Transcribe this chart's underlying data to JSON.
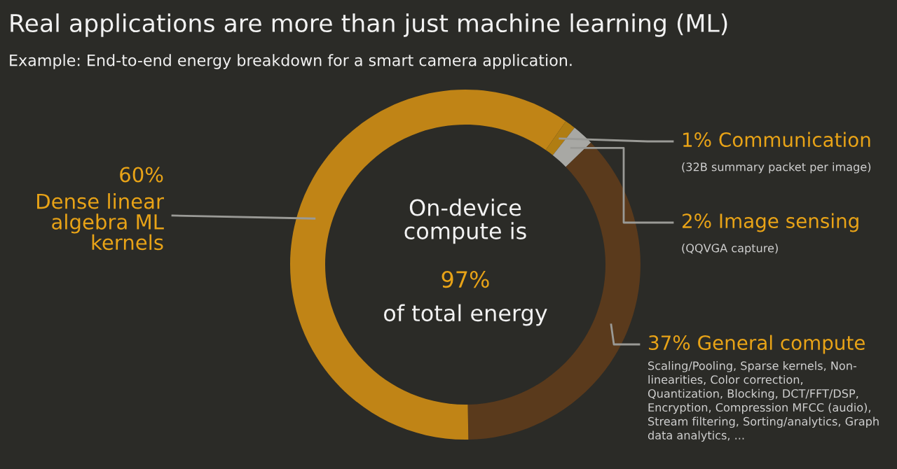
{
  "chart_data": {
    "type": "donut",
    "title": "Real applications are more than just machine learning (ML)",
    "subtitle": "Example: End-to-end energy breakdown for a smart camera application.",
    "categories": [
      "Communication",
      "Image sensing",
      "General compute",
      "Dense linear algebra ML kernels"
    ],
    "values": [
      1,
      2,
      37,
      60
    ],
    "value_labels": [
      "1%",
      "2%",
      "37%",
      "60%"
    ],
    "colors": [
      "#b07d12",
      "#a8a8a4",
      "#5a3a1c",
      "#c08416"
    ],
    "annotations": [
      "(32B summary packet per image)",
      "(QQVGA capture)",
      "Scaling/Pooling, Sparse kernels, Non-\nlinearities, Color correction,\nQuantization, Blocking, DCT/FFT/DSP,\nEncryption, Compression MFCC (audio),\nStream filtering, Sorting/analytics, Graph\ndata analytics, ...",
      "On-device\ncompute is",
      "97%",
      "of total energy"
    ]
  }
}
